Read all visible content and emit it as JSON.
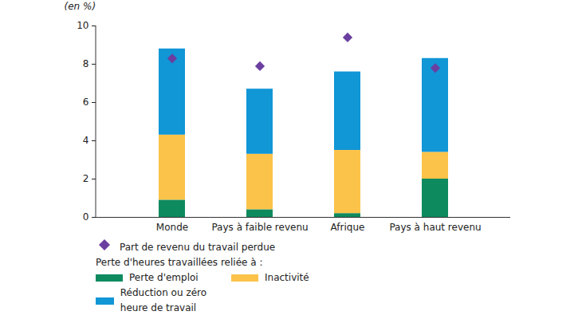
{
  "chart_data": {
    "type": "bar",
    "stacked": true,
    "y_label": "(en %)",
    "legend_title": "Perte d'heures travaillées reliée à :",
    "categories": [
      "Monde",
      "Pays à faible revenu",
      "Afrique",
      "Pays à haut revenu"
    ],
    "ylim": [
      0,
      10
    ],
    "yticks": [
      0,
      2,
      4,
      6,
      8,
      10
    ],
    "grid": false,
    "series": [
      {
        "name": "Perte d'emploi",
        "type": "bar",
        "color": "#0e8a5f",
        "values": [
          0.9,
          0.4,
          0.2,
          2.0
        ]
      },
      {
        "name": "Inactivité",
        "type": "bar",
        "color": "#fbc34a",
        "values": [
          3.4,
          2.9,
          3.3,
          1.4
        ]
      },
      {
        "name": "Réduction ou zéro heure de travail",
        "type": "bar",
        "color": "#1196d6",
        "values": [
          4.5,
          3.4,
          4.1,
          4.9
        ]
      },
      {
        "name": "Part de revenu du travail perdue",
        "type": "scatter",
        "marker": "diamond",
        "color": "#6b3fa0",
        "values": [
          8.3,
          7.9,
          9.4,
          7.8
        ]
      }
    ]
  }
}
